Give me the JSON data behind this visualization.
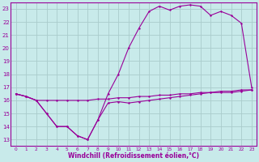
{
  "bg_color": "#c8eaea",
  "line_color": "#990099",
  "grid_color": "#aacccc",
  "xlabel": "Windchill (Refroidissement éolien,°C)",
  "xlabel_color": "#990099",
  "xlim": [
    -0.5,
    23.5
  ],
  "ylim": [
    12.5,
    23.5
  ],
  "yticks": [
    13,
    14,
    15,
    16,
    17,
    18,
    19,
    20,
    21,
    22,
    23
  ],
  "xticks": [
    0,
    1,
    2,
    3,
    4,
    5,
    6,
    7,
    8,
    9,
    10,
    11,
    12,
    13,
    14,
    15,
    16,
    17,
    18,
    19,
    20,
    21,
    22,
    23
  ],
  "line1_x": [
    0,
    1,
    2,
    3,
    4,
    5,
    6,
    7,
    8,
    9,
    10,
    11,
    12,
    13,
    14,
    15,
    16,
    17,
    18,
    19,
    20,
    21,
    22,
    23
  ],
  "line1_y": [
    16.5,
    16.3,
    16.0,
    16.0,
    16.0,
    16.0,
    16.0,
    16.0,
    16.1,
    16.1,
    16.2,
    16.2,
    16.3,
    16.3,
    16.4,
    16.4,
    16.5,
    16.5,
    16.6,
    16.6,
    16.7,
    16.7,
    16.8,
    16.8
  ],
  "line2_x": [
    0,
    1,
    2,
    3,
    4,
    5,
    6,
    7,
    8,
    9,
    10,
    11,
    12,
    13,
    14,
    15,
    16,
    17,
    18,
    19,
    20,
    21,
    22,
    23
  ],
  "line2_y": [
    16.5,
    16.3,
    16.0,
    15.0,
    14.0,
    14.0,
    13.3,
    13.0,
    14.5,
    15.8,
    15.9,
    15.8,
    15.9,
    16.0,
    16.1,
    16.2,
    16.3,
    16.4,
    16.5,
    16.6,
    16.6,
    16.6,
    16.7,
    16.8
  ],
  "line3_x": [
    0,
    1,
    2,
    3,
    4,
    5,
    6,
    7,
    8,
    9,
    10,
    11,
    12,
    13,
    14,
    15,
    16,
    17,
    18,
    19,
    20,
    21,
    22,
    23
  ],
  "line3_y": [
    16.5,
    16.3,
    16.0,
    15.0,
    14.0,
    14.0,
    13.3,
    13.0,
    14.5,
    16.5,
    18.0,
    20.0,
    21.5,
    22.8,
    23.2,
    22.9,
    23.2,
    23.3,
    23.2,
    22.5,
    22.8,
    22.5,
    21.9,
    17.0
  ]
}
